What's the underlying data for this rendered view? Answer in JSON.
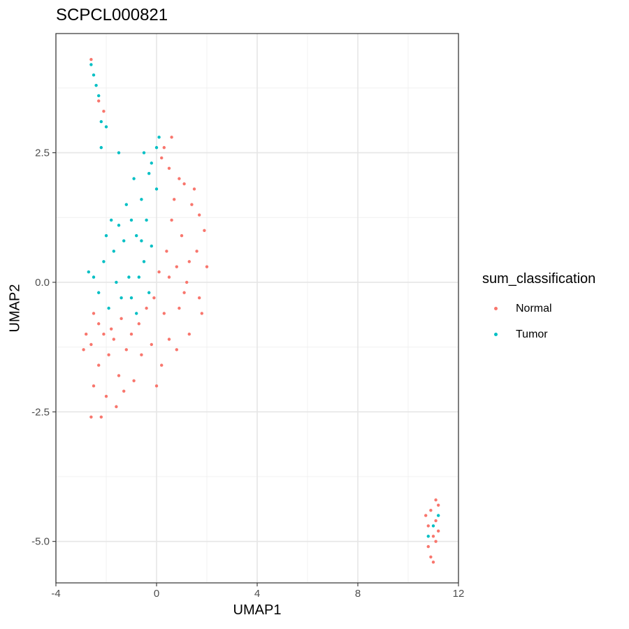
{
  "chart_data": {
    "type": "scatter",
    "title": "SCPCL000821",
    "xlabel": "UMAP1",
    "ylabel": "UMAP2",
    "xlim": [
      -4,
      12
    ],
    "ylim": [
      -5.8,
      4.8
    ],
    "x_ticks": [
      -4,
      0,
      4,
      8,
      12
    ],
    "x_tick_labels": [
      "-4",
      "0",
      "4",
      "8",
      "12"
    ],
    "y_ticks": [
      -5.0,
      -2.5,
      0.0,
      2.5
    ],
    "y_tick_labels": [
      "-5.0",
      "-2.5",
      "0.0",
      "2.5"
    ],
    "grid": true,
    "legend_title": "sum_classification",
    "legend_position": "right",
    "series": [
      {
        "name": "Normal",
        "color": "#F8766D",
        "values": [
          [
            0.6,
            1.2
          ],
          [
            1.0,
            0.9
          ],
          [
            1.4,
            1.5
          ],
          [
            0.8,
            0.3
          ],
          [
            1.6,
            0.6
          ],
          [
            1.9,
            1.0
          ],
          [
            1.2,
            0.0
          ],
          [
            0.4,
            0.6
          ],
          [
            1.7,
            -0.3
          ],
          [
            0.9,
            -0.5
          ],
          [
            0.3,
            2.6
          ],
          [
            0.6,
            2.8
          ],
          [
            0.2,
            2.4
          ],
          [
            0.5,
            2.2
          ],
          [
            1.1,
            1.9
          ],
          [
            1.5,
            1.8
          ],
          [
            0.9,
            2.0
          ],
          [
            2.0,
            0.3
          ],
          [
            1.8,
            -0.6
          ],
          [
            1.3,
            -1.0
          ],
          [
            -2.6,
            -1.2
          ],
          [
            -2.3,
            -1.6
          ],
          [
            -1.9,
            -1.4
          ],
          [
            -1.5,
            -1.8
          ],
          [
            -1.2,
            -1.3
          ],
          [
            -2.8,
            -1.0
          ],
          [
            -2.5,
            -2.0
          ],
          [
            -2.0,
            -2.2
          ],
          [
            -1.6,
            -2.4
          ],
          [
            -2.2,
            -2.6
          ],
          [
            -2.6,
            -2.6
          ],
          [
            -2.3,
            -0.8
          ],
          [
            -1.8,
            -0.9
          ],
          [
            -1.0,
            -1.0
          ],
          [
            -0.6,
            -1.4
          ],
          [
            -0.2,
            -1.2
          ],
          [
            0.2,
            -1.6
          ],
          [
            0.5,
            -1.1
          ],
          [
            0.3,
            -0.6
          ],
          [
            -0.4,
            -0.5
          ],
          [
            -2.9,
            -1.3
          ],
          [
            -2.5,
            -0.6
          ],
          [
            -1.3,
            -2.1
          ],
          [
            -0.9,
            -1.9
          ],
          [
            0.0,
            -2.0
          ],
          [
            0.8,
            -1.3
          ],
          [
            -1.7,
            -1.1
          ],
          [
            -2.1,
            -1.0
          ],
          [
            0.1,
            0.2
          ],
          [
            -0.1,
            -0.3
          ],
          [
            -2.6,
            4.3
          ],
          [
            -2.3,
            3.5
          ],
          [
            -2.1,
            3.3
          ],
          [
            0.7,
            1.6
          ],
          [
            1.3,
            0.4
          ],
          [
            1.7,
            1.3
          ],
          [
            0.5,
            0.1
          ],
          [
            1.1,
            -0.2
          ],
          [
            -0.7,
            -0.8
          ],
          [
            -1.4,
            -0.7
          ],
          [
            10.9,
            -4.4
          ],
          [
            11.1,
            -4.6
          ],
          [
            11.0,
            -4.9
          ],
          [
            10.8,
            -5.1
          ],
          [
            11.2,
            -4.3
          ],
          [
            10.9,
            -5.3
          ],
          [
            11.1,
            -5.0
          ],
          [
            10.8,
            -4.7
          ],
          [
            11.0,
            -5.4
          ],
          [
            11.2,
            -4.8
          ],
          [
            10.7,
            -4.5
          ],
          [
            11.1,
            -4.2
          ]
        ]
      },
      {
        "name": "Tumor",
        "color": "#00BFC4",
        "values": [
          [
            -1.0,
            1.2
          ],
          [
            -0.6,
            1.6
          ],
          [
            -0.3,
            2.1
          ],
          [
            0.0,
            2.6
          ],
          [
            -0.2,
            2.3
          ],
          [
            -1.3,
            0.8
          ],
          [
            -1.7,
            0.6
          ],
          [
            -2.1,
            0.4
          ],
          [
            -0.8,
            0.9
          ],
          [
            -0.5,
            0.4
          ],
          [
            -1.1,
            0.1
          ],
          [
            -1.6,
            0.0
          ],
          [
            -2.3,
            -0.2
          ],
          [
            -0.3,
            -0.2
          ],
          [
            -0.8,
            -0.6
          ],
          [
            -1.2,
            1.5
          ],
          [
            -0.9,
            2.0
          ],
          [
            -0.5,
            2.5
          ],
          [
            0.1,
            2.8
          ],
          [
            -0.4,
            1.2
          ],
          [
            -1.5,
            1.1
          ],
          [
            -2.0,
            0.9
          ],
          [
            -2.5,
            0.1
          ],
          [
            -1.9,
            -0.5
          ],
          [
            -1.4,
            -0.3
          ],
          [
            -0.7,
            0.1
          ],
          [
            -0.2,
            0.7
          ],
          [
            -1.8,
            1.2
          ],
          [
            -2.2,
            2.6
          ],
          [
            -1.5,
            2.5
          ],
          [
            -2.5,
            4.0
          ],
          [
            -2.4,
            3.8
          ],
          [
            -2.3,
            3.6
          ],
          [
            -2.2,
            3.1
          ],
          [
            -2.0,
            3.0
          ],
          [
            -2.6,
            4.2
          ],
          [
            -2.7,
            0.2
          ],
          [
            -1.0,
            -0.3
          ],
          [
            0.0,
            1.8
          ],
          [
            -0.6,
            0.8
          ],
          [
            11.0,
            -4.7
          ],
          [
            11.2,
            -4.5
          ],
          [
            10.8,
            -4.9
          ]
        ]
      }
    ]
  }
}
